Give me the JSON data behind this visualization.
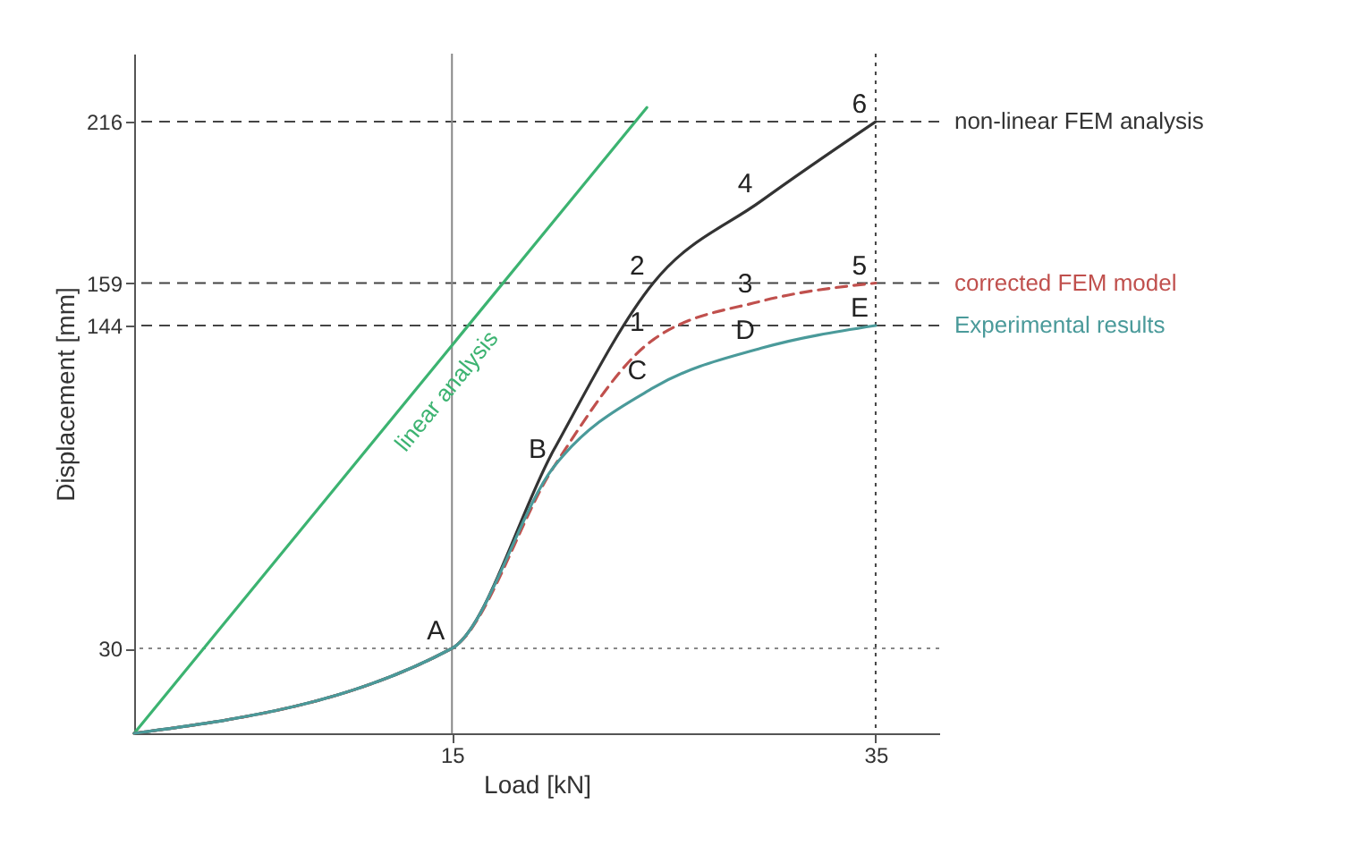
{
  "chart_data": {
    "type": "line",
    "xlabel": "Load [kN]",
    "ylabel": "Displacement [mm]",
    "xlim": [
      0,
      38
    ],
    "ylim": [
      0,
      240
    ],
    "xticks": [
      15,
      35
    ],
    "yticks": [
      30,
      144,
      159,
      216
    ],
    "grid": false,
    "series": [
      {
        "name": "linear analysis",
        "color": "#3cb371",
        "x": [
          0,
          24.2
        ],
        "values": [
          0,
          221
        ]
      },
      {
        "name": "non-linear FEM analysis",
        "color": "#333333",
        "x": [
          0,
          15,
          19.8,
          24.5,
          29.6,
          35
        ],
        "values": [
          0,
          30,
          100,
          159,
          188,
          216
        ]
      },
      {
        "name": "corrected FEM model",
        "color": "#c0504d",
        "line_style": "dashed",
        "x": [
          0,
          15,
          19.8,
          24.5,
          29.6,
          35
        ],
        "values": [
          0,
          30,
          94,
          139,
          152.6,
          159
        ]
      },
      {
        "name": "Experimental results",
        "color": "#4a9a9a",
        "x": [
          0,
          15,
          19.8,
          24.5,
          29.6,
          35
        ],
        "values": [
          0,
          30,
          94,
          122,
          136,
          144
        ]
      }
    ],
    "ref_lines": [
      {
        "axis": "y",
        "value": 216,
        "color": "#444444",
        "line_style": "dashed"
      },
      {
        "axis": "y",
        "value": 159,
        "color": "#444444",
        "line_style": "dashed"
      },
      {
        "axis": "y",
        "value": 144,
        "color": "#444444",
        "line_style": "dashed"
      },
      {
        "axis": "y",
        "value": 30,
        "color": "#888888",
        "line_style": "dotted"
      },
      {
        "axis": "x",
        "value": 15,
        "color": "#888888",
        "line_style": "solid"
      },
      {
        "axis": "x",
        "value": 35,
        "color": "#444444",
        "line_style": "dotted"
      }
    ],
    "annotations": [
      {
        "text": "A",
        "x": 15,
        "y": 30
      },
      {
        "text": "B",
        "x": 19.8,
        "y": 94
      },
      {
        "text": "C",
        "x": 24.5,
        "y": 122
      },
      {
        "text": "D",
        "x": 29.6,
        "y": 136
      },
      {
        "text": "E",
        "x": 35,
        "y": 144
      },
      {
        "text": "1",
        "x": 24.5,
        "y": 139
      },
      {
        "text": "2",
        "x": 24.5,
        "y": 159
      },
      {
        "text": "3",
        "x": 29.6,
        "y": 152.6
      },
      {
        "text": "4",
        "x": 29.6,
        "y": 188
      },
      {
        "text": "5",
        "x": 35,
        "y": 159
      },
      {
        "text": "6",
        "x": 35,
        "y": 216
      }
    ]
  }
}
